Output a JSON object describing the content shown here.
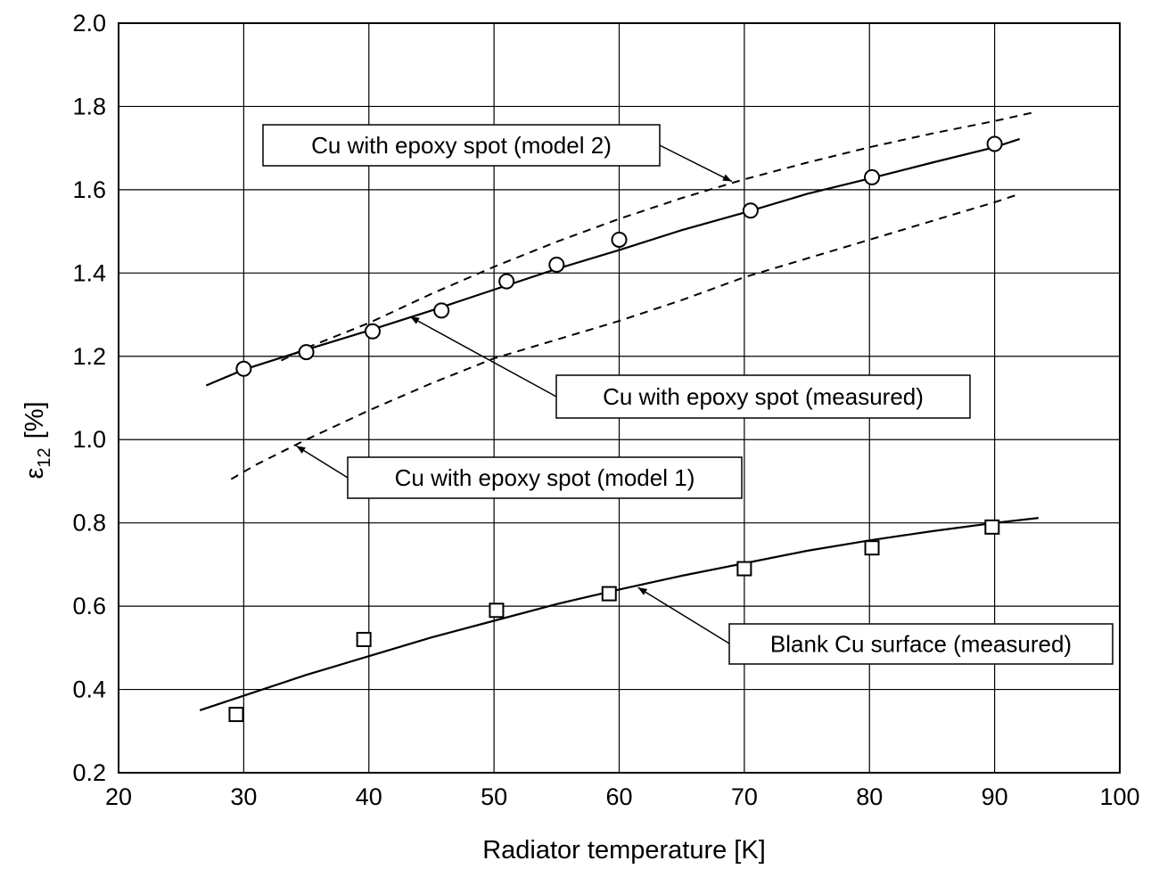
{
  "chart_data": {
    "type": "scatter",
    "xlabel": "Radiator temperature [K]",
    "ylabel": {
      "symbol": "ε",
      "subscript": "12",
      "unit": "[%]"
    },
    "xlim": [
      20,
      100
    ],
    "ylim": [
      0.2,
      2.0
    ],
    "x_ticks": [
      "20",
      "30",
      "40",
      "50",
      "60",
      "70",
      "80",
      "90",
      "100"
    ],
    "y_ticks": [
      "0.2",
      "0.4",
      "0.6",
      "0.8",
      "1.0",
      "1.2",
      "1.4",
      "1.6",
      "1.8",
      "2.0"
    ],
    "grid": true,
    "legend": "none",
    "series": [
      {
        "marker": "circle",
        "x": [
          30.0,
          35.0,
          40.3,
          45.8,
          51.0,
          55.0,
          60.0,
          70.5,
          80.2,
          90.0
        ],
        "y": [
          1.17,
          1.21,
          1.26,
          1.31,
          1.38,
          1.42,
          1.48,
          1.55,
          1.63,
          1.71
        ]
      },
      {
        "marker": "square",
        "x": [
          29.4,
          39.6,
          50.2,
          59.2,
          70.0,
          80.2,
          89.8
        ],
        "y": [
          0.34,
          0.52,
          0.59,
          0.63,
          0.69,
          0.74,
          0.79
        ]
      },
      {
        "line": "solid",
        "x": [
          27.0,
          30.0,
          35.0,
          40.0,
          45.0,
          50.0,
          55.0,
          60.0,
          65.0,
          70.0,
          75.0,
          80.0,
          85.0,
          90.0,
          92.0
        ],
        "y": [
          1.13,
          1.168,
          1.216,
          1.262,
          1.31,
          1.36,
          1.41,
          1.455,
          1.503,
          1.545,
          1.59,
          1.627,
          1.665,
          1.702,
          1.722
        ]
      },
      {
        "line": "dashed",
        "x": [
          33.0,
          35.0,
          40.0,
          45.0,
          50.0,
          55.0,
          60.0,
          65.0,
          70.0,
          75.0,
          80.0,
          85.0,
          90.0,
          93.0
        ],
        "y": [
          1.19,
          1.22,
          1.28,
          1.35,
          1.415,
          1.475,
          1.53,
          1.58,
          1.625,
          1.665,
          1.702,
          1.735,
          1.765,
          1.785
        ]
      },
      {
        "line": "dashed",
        "x": [
          29.0,
          31.0,
          35.0,
          40.0,
          45.0,
          50.0,
          55.0,
          60.0,
          65.0,
          70.0,
          75.0,
          80.0,
          85.0,
          90.0,
          92.0
        ],
        "y": [
          0.905,
          0.94,
          1.0,
          1.07,
          1.135,
          1.195,
          1.24,
          1.285,
          1.335,
          1.39,
          1.435,
          1.48,
          1.525,
          1.57,
          1.59
        ]
      },
      {
        "line": "solid",
        "x": [
          26.5,
          30.0,
          35.0,
          40.0,
          45.0,
          50.0,
          55.0,
          60.0,
          65.0,
          70.0,
          75.0,
          80.0,
          85.0,
          90.0,
          93.5
        ],
        "y": [
          0.35,
          0.385,
          0.435,
          0.48,
          0.525,
          0.565,
          0.605,
          0.64,
          0.673,
          0.703,
          0.733,
          0.758,
          0.78,
          0.8,
          0.812
        ]
      }
    ],
    "annotations": [
      {
        "text": "Cu with epoxy spot (model 2)",
        "arrow_to": [
          69.0,
          1.62
        ]
      },
      {
        "text": "Cu with epoxy spot (measured)",
        "arrow_to": [
          43.3,
          1.295
        ]
      },
      {
        "text": "Cu with epoxy spot (model 1)",
        "arrow_to": [
          34.2,
          0.985
        ]
      },
      {
        "text": "Blank Cu surface (measured)",
        "arrow_to": [
          61.5,
          0.645
        ]
      }
    ]
  }
}
